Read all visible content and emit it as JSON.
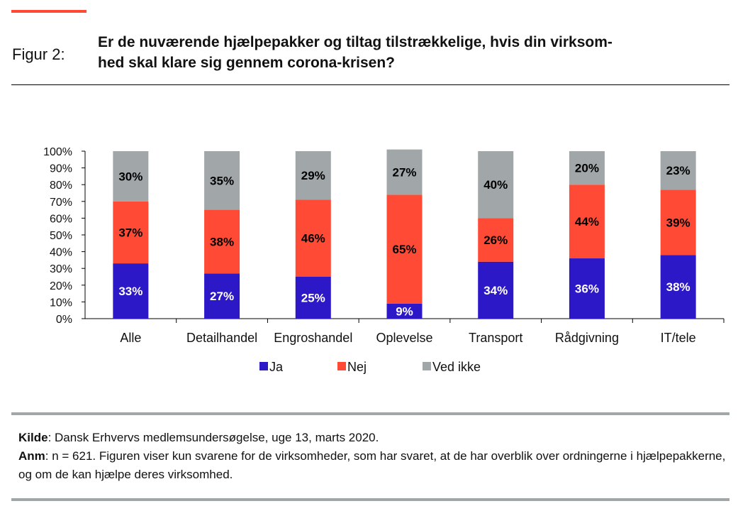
{
  "header": {
    "figure_label": "Figur 2:",
    "title": "Er de nuværende hjælpepakker og tiltag tilstrækkelige, hvis din virksom-hed skal klare sig gennem corona-krisen?",
    "title_line1": "Er de nuværende hjælpepakker og tiltag tilstrækkelige, hvis din virksom-",
    "title_line2": "hed skal klare sig gennem corona-krisen?"
  },
  "colors": {
    "accent": "#ff4b36",
    "ja": "#2d18c8",
    "nej": "#ff4b36",
    "ved_ikke": "#a1a6a8"
  },
  "chart_data": {
    "type": "bar",
    "stacked": true,
    "title": "Er de nuværende hjælpepakker og tiltag tilstrækkelige, hvis din virksomhed skal klare sig gennem corona-krisen?",
    "xlabel": "",
    "ylabel": "",
    "ylim": [
      0,
      100
    ],
    "yticks": [
      "0%",
      "10%",
      "20%",
      "30%",
      "40%",
      "50%",
      "60%",
      "70%",
      "80%",
      "90%",
      "100%"
    ],
    "grid": false,
    "legend_position": "bottom",
    "categories": [
      "Alle",
      "Detailhandel",
      "Engroshandel",
      "Oplevelse",
      "Transport",
      "Rådgivning",
      "IT/tele"
    ],
    "series": [
      {
        "name": "Ja",
        "color": "#2d18c8",
        "label_color": "#ffffff",
        "values": [
          33,
          27,
          25,
          9,
          34,
          36,
          38
        ]
      },
      {
        "name": "Nej",
        "color": "#ff4b36",
        "label_color": "#000000",
        "values": [
          37,
          38,
          46,
          65,
          26,
          44,
          39
        ]
      },
      {
        "name": "Ved ikke",
        "color": "#a1a6a8",
        "label_color": "#000000",
        "values": [
          30,
          35,
          29,
          27,
          40,
          20,
          23
        ]
      }
    ]
  },
  "footer": {
    "source_label": "Kilde",
    "source_text": ": Dansk Erhvervs medlemsundersøgelse, uge 13, marts 2020.",
    "note_label": "Anm",
    "note_text": ": n = 621. Figuren viser kun svarene for de virksomheder, som har svaret, at de har overblik over ordningerne i hjælpepakkerne, og om de kan hjælpe deres virksomhed."
  }
}
